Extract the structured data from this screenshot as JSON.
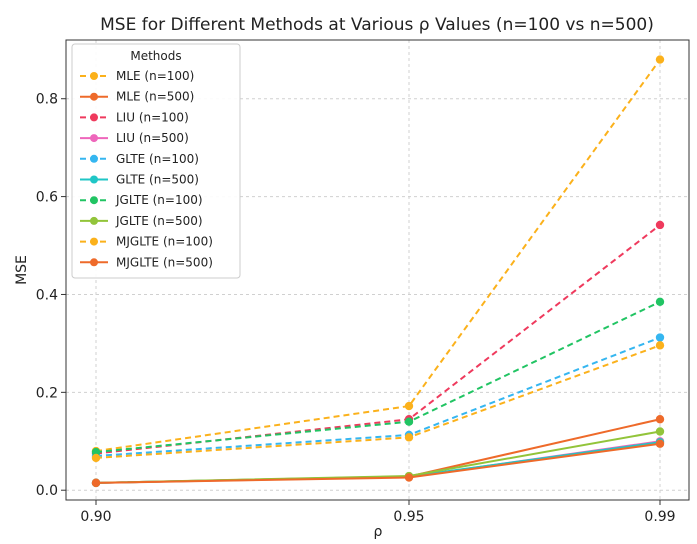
{
  "chart_data": {
    "type": "line",
    "title": "MSE for Different Methods at Various ρ Values (n=100 vs n=500)",
    "xlabel": "ρ",
    "ylabel": "MSE",
    "categories": [
      "0.90",
      "0.95",
      "0.99"
    ],
    "ylim": [
      -0.02,
      0.92
    ],
    "yticks": [
      "0.0",
      "0.2",
      "0.4",
      "0.6",
      "0.8"
    ],
    "grid": true,
    "legend_title": "Methods",
    "legend_position": "top-left",
    "series": [
      {
        "name": "MLE (n=100)",
        "values": [
          0.08,
          0.172,
          0.88
        ],
        "color": "#fbb11b",
        "style": "dashed"
      },
      {
        "name": "MLE (n=500)",
        "values": [
          0.015,
          0.028,
          0.145
        ],
        "color": "#ee6a2a",
        "style": "solid"
      },
      {
        "name": "LIU (n=100)",
        "values": [
          0.075,
          0.145,
          0.542
        ],
        "color": "#ef3a5d",
        "style": "dashed"
      },
      {
        "name": "LIU (n=500)",
        "values": [
          0.015,
          0.027,
          0.1
        ],
        "color": "#ee66bb",
        "style": "solid"
      },
      {
        "name": "GLTE (n=100)",
        "values": [
          0.07,
          0.113,
          0.312
        ],
        "color": "#35b6f0",
        "style": "dashed"
      },
      {
        "name": "GLTE (n=500)",
        "values": [
          0.015,
          0.028,
          0.098
        ],
        "color": "#1fc6c6",
        "style": "solid"
      },
      {
        "name": "JGLTE (n=100)",
        "values": [
          0.078,
          0.14,
          0.385
        ],
        "color": "#21c463",
        "style": "dashed"
      },
      {
        "name": "JGLTE (n=500)",
        "values": [
          0.015,
          0.029,
          0.12
        ],
        "color": "#92c43a",
        "style": "solid"
      },
      {
        "name": "MJGLTE (n=100)",
        "values": [
          0.066,
          0.108,
          0.296
        ],
        "color": "#fbb11b",
        "style": "dashed"
      },
      {
        "name": "MJGLTE (n=500)",
        "values": [
          0.015,
          0.026,
          0.095
        ],
        "color": "#ee6a2a",
        "style": "solid"
      }
    ]
  }
}
